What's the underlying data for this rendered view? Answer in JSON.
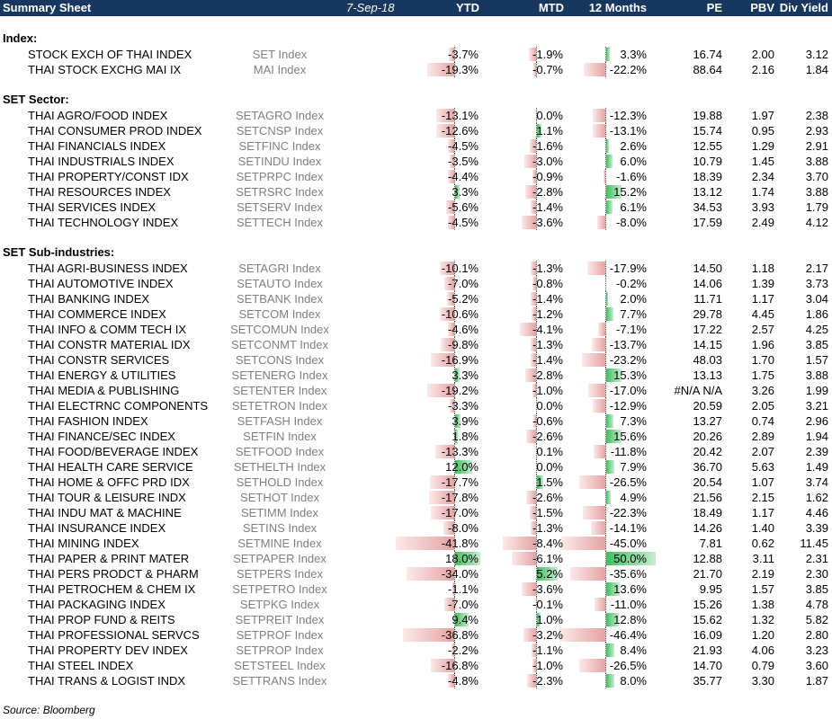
{
  "header": {
    "title": "Summary Sheet",
    "date": "7-Sep-18",
    "cols": [
      "YTD",
      "MTD",
      "12 Months",
      "PE",
      "PBV",
      "Div Yield"
    ]
  },
  "sections": [
    {
      "title": "Index:",
      "rows": [
        {
          "name": "STOCK EXCH OF THAI INDEX",
          "ticker": "SET Index",
          "ytd": "-3.7%",
          "mtd": "-1.9%",
          "m12": "3.3%",
          "pe": "16.74",
          "pbv": "2.00",
          "dy": "3.12"
        },
        {
          "name": "THAI STOCK EXCHG MAI IX",
          "ticker": "MAI Index",
          "ytd": "-19.3%",
          "mtd": "-0.7%",
          "m12": "-22.2%",
          "pe": "88.64",
          "pbv": "2.16",
          "dy": "1.84"
        }
      ]
    },
    {
      "title": "SET Sector:",
      "rows": [
        {
          "name": "THAI AGRO/FOOD INDEX",
          "ticker": "SETAGRO Index",
          "ytd": "-13.1%",
          "mtd": "0.0%",
          "m12": "-12.3%",
          "pe": "19.88",
          "pbv": "1.97",
          "dy": "2.38"
        },
        {
          "name": "THAI CONSUMER PROD INDEX",
          "ticker": "SETCNSP Index",
          "ytd": "-12.6%",
          "mtd": "1.1%",
          "m12": "-13.1%",
          "pe": "15.74",
          "pbv": "0.95",
          "dy": "2.93"
        },
        {
          "name": "THAI FINANCIALS INDEX",
          "ticker": "SETFINC Index",
          "ytd": "-4.5%",
          "mtd": "-1.6%",
          "m12": "2.6%",
          "pe": "12.55",
          "pbv": "1.29",
          "dy": "2.91"
        },
        {
          "name": "THAI INDUSTRIALS INDEX",
          "ticker": "SETINDU Index",
          "ytd": "-3.5%",
          "mtd": "-3.0%",
          "m12": "6.0%",
          "pe": "10.79",
          "pbv": "1.45",
          "dy": "3.88"
        },
        {
          "name": "THAI PROPERTY/CONST IDX",
          "ticker": "SETPRPC Index",
          "ytd": "-4.4%",
          "mtd": "-0.9%",
          "m12": "-1.6%",
          "pe": "18.39",
          "pbv": "2.34",
          "dy": "3.70"
        },
        {
          "name": "THAI RESOURCES INDEX",
          "ticker": "SETRSRC Index",
          "ytd": "3.3%",
          "mtd": "-2.8%",
          "m12": "15.2%",
          "pe": "13.12",
          "pbv": "1.74",
          "dy": "3.88"
        },
        {
          "name": "THAI SERVICES INDEX",
          "ticker": "SETSERV Index",
          "ytd": "-5.6%",
          "mtd": "-1.4%",
          "m12": "6.1%",
          "pe": "34.53",
          "pbv": "3.93",
          "dy": "1.79"
        },
        {
          "name": "THAI TECHNOLOGY INDEX",
          "ticker": "SETTECH Index",
          "ytd": "-4.5%",
          "mtd": "-3.6%",
          "m12": "-8.0%",
          "pe": "17.59",
          "pbv": "2.49",
          "dy": "4.12"
        }
      ]
    },
    {
      "title": "SET Sub-industries:",
      "rows": [
        {
          "name": "THAI AGRI-BUSINESS INDEX",
          "ticker": "SETAGRI Index",
          "ytd": "-10.1%",
          "mtd": "-1.3%",
          "m12": "-17.9%",
          "pe": "14.50",
          "pbv": "1.18",
          "dy": "2.17"
        },
        {
          "name": "THAI AUTOMOTIVE INDEX",
          "ticker": "SETAUTO Index",
          "ytd": "-7.0%",
          "mtd": "-0.8%",
          "m12": "-0.2%",
          "pe": "14.06",
          "pbv": "1.39",
          "dy": "3.73"
        },
        {
          "name": "THAI BANKING INDEX",
          "ticker": "SETBANK Index",
          "ytd": "-5.2%",
          "mtd": "-1.4%",
          "m12": "2.0%",
          "pe": "11.71",
          "pbv": "1.17",
          "dy": "3.04"
        },
        {
          "name": "THAI COMMERCE INDEX",
          "ticker": "SETCOM Index",
          "ytd": "-10.6%",
          "mtd": "-1.2%",
          "m12": "7.7%",
          "pe": "29.78",
          "pbv": "4.45",
          "dy": "1.86"
        },
        {
          "name": "THAI INFO & COMM TECH IX",
          "ticker": "SETCOMUN Index",
          "ytd": "-4.6%",
          "mtd": "-4.1%",
          "m12": "-7.1%",
          "pe": "17.22",
          "pbv": "2.57",
          "dy": "4.25"
        },
        {
          "name": "THAI CONSTR MATERIAL IDX",
          "ticker": "SETCONMT Index",
          "ytd": "-9.8%",
          "mtd": "-1.3%",
          "m12": "-13.7%",
          "pe": "14.15",
          "pbv": "1.96",
          "dy": "3.85"
        },
        {
          "name": "THAI CONSTR SERVICES",
          "ticker": "SETCONS Index",
          "ytd": "-16.9%",
          "mtd": "-1.4%",
          "m12": "-23.2%",
          "pe": "48.03",
          "pbv": "1.70",
          "dy": "1.57"
        },
        {
          "name": "THAI ENERGY & UTILITIES",
          "ticker": "SETENERG Index",
          "ytd": "3.3%",
          "mtd": "-2.8%",
          "m12": "15.3%",
          "pe": "13.13",
          "pbv": "1.75",
          "dy": "3.88"
        },
        {
          "name": "THAI MEDIA & PUBLISHING",
          "ticker": "SETENTER Index",
          "ytd": "-19.2%",
          "mtd": "-1.0%",
          "m12": "-17.0%",
          "pe": "#N/A N/A",
          "pbv": "3.26",
          "dy": "1.99"
        },
        {
          "name": "THAI ELECTRNC COMPONENTS",
          "ticker": "SETETRON Index",
          "ytd": "-3.3%",
          "mtd": "0.0%",
          "m12": "-12.9%",
          "pe": "20.59",
          "pbv": "2.05",
          "dy": "3.21"
        },
        {
          "name": "THAI FASHION INDEX",
          "ticker": "SETFASH Index",
          "ytd": "3.9%",
          "mtd": "-0.6%",
          "m12": "7.3%",
          "pe": "13.27",
          "pbv": "0.74",
          "dy": "2.96"
        },
        {
          "name": "THAI FINANCE/SEC INDEX",
          "ticker": "SETFIN Index",
          "ytd": "1.8%",
          "mtd": "-2.6%",
          "m12": "15.6%",
          "pe": "20.26",
          "pbv": "2.89",
          "dy": "1.94"
        },
        {
          "name": "THAI FOOD/BEVERAGE INDEX",
          "ticker": "SETFOOD Index",
          "ytd": "-13.3%",
          "mtd": "0.1%",
          "m12": "-11.8%",
          "pe": "20.42",
          "pbv": "2.07",
          "dy": "2.39"
        },
        {
          "name": "THAI HEALTH CARE SERVICE",
          "ticker": "SETHELTH Index",
          "ytd": "12.0%",
          "mtd": "0.0%",
          "m12": "7.9%",
          "pe": "36.70",
          "pbv": "5.63",
          "dy": "1.49"
        },
        {
          "name": "THAI HOME & OFFC PRD IDX",
          "ticker": "SETHOLD Index",
          "ytd": "-17.7%",
          "mtd": "1.5%",
          "m12": "-26.5%",
          "pe": "20.54",
          "pbv": "1.07",
          "dy": "3.74"
        },
        {
          "name": "THAI TOUR & LEISURE INDX",
          "ticker": "SETHOT Index",
          "ytd": "-17.8%",
          "mtd": "-2.6%",
          "m12": "4.9%",
          "pe": "21.56",
          "pbv": "2.15",
          "dy": "1.62"
        },
        {
          "name": "THAI INDU MAT & MACHINE",
          "ticker": "SETIMM Index",
          "ytd": "-17.0%",
          "mtd": "-1.5%",
          "m12": "-22.3%",
          "pe": "18.49",
          "pbv": "1.17",
          "dy": "4.46"
        },
        {
          "name": "THAI INSURANCE INDEX",
          "ticker": "SETINS Index",
          "ytd": "-8.0%",
          "mtd": "-1.3%",
          "m12": "-14.1%",
          "pe": "14.26",
          "pbv": "1.40",
          "dy": "3.39"
        },
        {
          "name": "THAI MINING INDEX",
          "ticker": "SETMINE Index",
          "ytd": "-41.8%",
          "mtd": "-8.4%",
          "m12": "-45.0%",
          "pe": "7.81",
          "pbv": "0.62",
          "dy": "11.45"
        },
        {
          "name": "THAI PAPER & PRINT MATER",
          "ticker": "SETPAPER Index",
          "ytd": "18.0%",
          "mtd": "-6.1%",
          "m12": "50.0%",
          "pe": "12.88",
          "pbv": "3.11",
          "dy": "2.31"
        },
        {
          "name": "THAI PERS PRODCT & PHARM",
          "ticker": "SETPERS Index",
          "ytd": "-34.0%",
          "mtd": "5.2%",
          "m12": "-35.6%",
          "pe": "21.70",
          "pbv": "2.19",
          "dy": "2.30"
        },
        {
          "name": "THAI PETROCHEM & CHEM IX",
          "ticker": "SETPETRO Index",
          "ytd": "-1.1%",
          "mtd": "-3.6%",
          "m12": "13.6%",
          "pe": "9.95",
          "pbv": "1.57",
          "dy": "3.85"
        },
        {
          "name": "THAI PACKAGING INDEX",
          "ticker": "SETPKG Index",
          "ytd": "-7.0%",
          "mtd": "-0.1%",
          "m12": "-11.0%",
          "pe": "15.26",
          "pbv": "1.38",
          "dy": "4.78"
        },
        {
          "name": "THAI PROP FUND & REITS",
          "ticker": "SETPREIT Index",
          "ytd": "9.4%",
          "mtd": "1.0%",
          "m12": "12.8%",
          "pe": "15.62",
          "pbv": "1.32",
          "dy": "5.82"
        },
        {
          "name": "THAI PROFESSIONAL SERVCS",
          "ticker": "SETPROF Index",
          "ytd": "-36.8%",
          "mtd": "-3.2%",
          "m12": "-46.4%",
          "pe": "16.09",
          "pbv": "1.20",
          "dy": "2.80"
        },
        {
          "name": "THAI PROPERTY DEV INDEX",
          "ticker": "SETPROP Index",
          "ytd": "-2.2%",
          "mtd": "-1.1%",
          "m12": "8.4%",
          "pe": "21.93",
          "pbv": "4.06",
          "dy": "3.23"
        },
        {
          "name": "THAI STEEL INDEX",
          "ticker": "SETSTEEL Index",
          "ytd": "-16.8%",
          "mtd": "-1.0%",
          "m12": "-26.5%",
          "pe": "14.70",
          "pbv": "0.79",
          "dy": "3.60"
        },
        {
          "name": "THAI TRANS & LOGIST INDX",
          "ticker": "SETTRANS Index",
          "ytd": "-4.8%",
          "mtd": "-2.3%",
          "m12": "8.0%",
          "pe": "35.77",
          "pbv": "3.30",
          "dy": "1.87"
        }
      ]
    }
  ],
  "source": "Source: Bloomberg",
  "colors": {
    "header_bg": "#17375e",
    "negative_bar": "#e6a3a3",
    "positive_bar": "#3fbf5f",
    "ticker_text": "#7f7f7f"
  }
}
